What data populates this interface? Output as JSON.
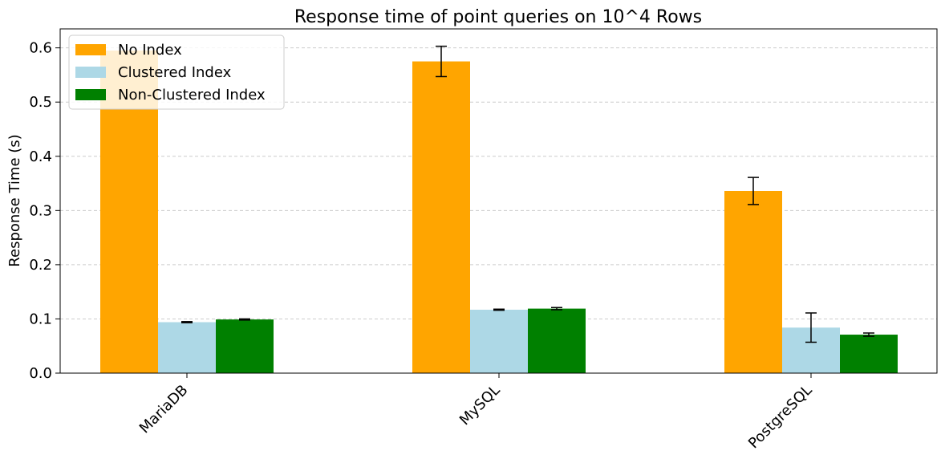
{
  "chart_data": {
    "type": "bar",
    "title": "Response time of point queries on 10^4 Rows",
    "xlabel": "",
    "ylabel": "Response Time (s)",
    "categories": [
      "MariaDB",
      "MySQL",
      "PostgreSQL"
    ],
    "ylim": [
      0,
      0.635
    ],
    "yticks": [
      "0.0",
      "0.1",
      "0.2",
      "0.3",
      "0.4",
      "0.5",
      "0.6"
    ],
    "grid": "y-dashed",
    "legend": "top-left",
    "series": [
      {
        "name": "No Index",
        "color": "#FFA500",
        "values": [
          0.595,
          0.575,
          0.336
        ],
        "errors": [
          0.0,
          0.028,
          0.025
        ]
      },
      {
        "name": "Clustered Index",
        "color": "#ADD8E6",
        "values": [
          0.094,
          0.117,
          0.084
        ],
        "errors": [
          0.001,
          0.001,
          0.027
        ]
      },
      {
        "name": "Non-Clustered Index",
        "color": "#008000",
        "values": [
          0.099,
          0.119,
          0.071
        ],
        "errors": [
          0.001,
          0.002,
          0.003
        ]
      }
    ]
  }
}
